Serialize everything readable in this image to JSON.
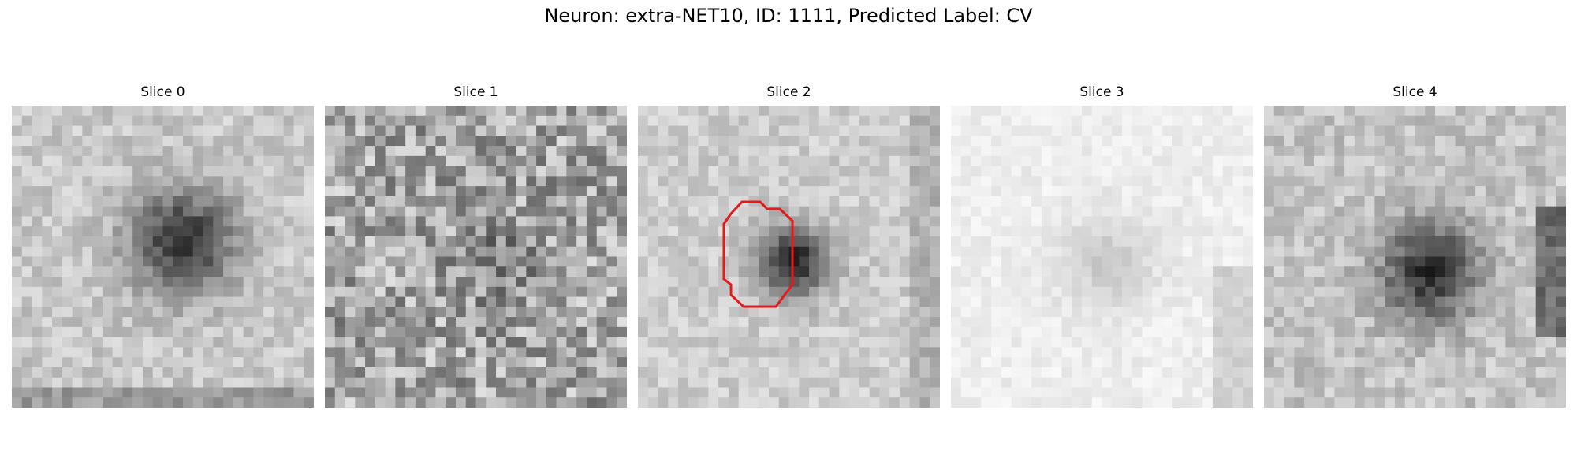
{
  "figure": {
    "title": "Neuron: extra-NET10, ID: 1111, Predicted Label: CV"
  },
  "panels": [
    {
      "title": "Slice 0",
      "appearance": "dark blob right of center, bright noisy surround",
      "has_roi": false
    },
    {
      "title": "Slice 1",
      "appearance": "high-contrast noise, scattered dark pixels",
      "has_roi": false
    },
    {
      "title": "Slice 2",
      "appearance": "dark round soma at center with red outline",
      "has_roi": true,
      "roi_color": "#e41a1c"
    },
    {
      "title": "Slice 3",
      "appearance": "very pale, faint structure",
      "has_roi": false
    },
    {
      "title": "Slice 4",
      "appearance": "dark cell center-left with dark band on right",
      "has_roi": false
    }
  ],
  "colors": {
    "roi": "#e41a1c",
    "background": "#ffffff"
  }
}
